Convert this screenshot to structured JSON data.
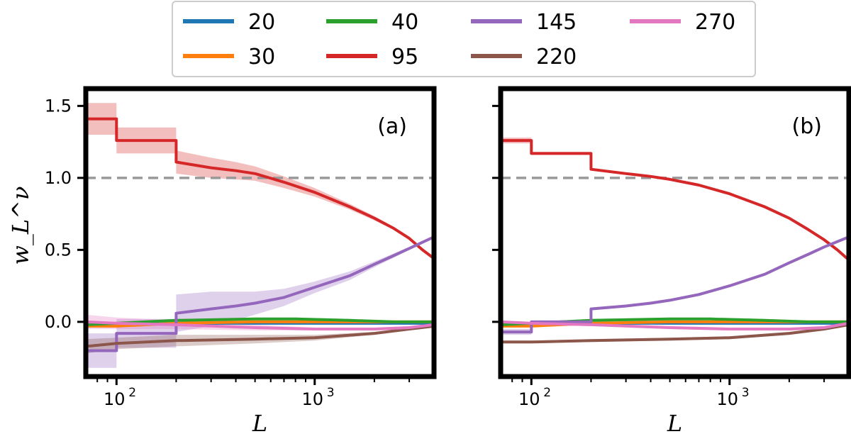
{
  "chart_data": [
    {
      "type": "line",
      "panel_label": "(a)",
      "xlabel": "L",
      "ylabel": "w_L^ν",
      "xscale": "log",
      "xlim": [
        70,
        4000
      ],
      "ylim": [
        -0.38,
        1.62
      ],
      "x_ticks": [
        100,
        1000
      ],
      "x_tick_labels": [
        "10",
        "10"
      ],
      "x_tick_exponents": [
        "2",
        "3"
      ],
      "y_ticks": [
        -0.0,
        0.5,
        1.0,
        1.5
      ],
      "y_tick_labels": [
        "0.0",
        "0.5",
        "1.0",
        "1.5"
      ],
      "reference_line": {
        "y": 1.0,
        "style": "dashed",
        "color": "#999999"
      },
      "series": [
        {
          "name": "20",
          "color": "#1f77b4",
          "points": [
            [
              70,
              -0.02
            ],
            [
              100,
              -0.02
            ],
            [
              300,
              -0.01
            ],
            [
              1000,
              -0.01
            ],
            [
              4000,
              -0.01
            ]
          ],
          "band": [
            0.005,
            0.005,
            0.005,
            0.005,
            0.005
          ]
        },
        {
          "name": "30",
          "color": "#ff7f0e",
          "points": [
            [
              70,
              -0.03
            ],
            [
              100,
              -0.03
            ],
            [
              200,
              -0.01
            ],
            [
              500,
              0.0
            ],
            [
              1000,
              0.0
            ],
            [
              2000,
              0.0
            ],
            [
              4000,
              0.0
            ]
          ],
          "band": [
            0.01,
            0.01,
            0.01,
            0.01,
            0.01,
            0.01,
            0.01
          ]
        },
        {
          "name": "40",
          "color": "#2ca02c",
          "points": [
            [
              70,
              -0.02
            ],
            [
              100,
              -0.01
            ],
            [
              200,
              0.01
            ],
            [
              500,
              0.02
            ],
            [
              800,
              0.02
            ],
            [
              1500,
              0.01
            ],
            [
              2500,
              0.0
            ],
            [
              4000,
              0.0
            ]
          ],
          "band": [
            0.02,
            0.01,
            0.01,
            0.01,
            0.01,
            0.01,
            0.01,
            0.01
          ]
        },
        {
          "name": "95",
          "color": "#d62728",
          "points": [
            [
              70,
              1.41
            ],
            [
              100,
              1.41
            ],
            [
              100,
              1.26
            ],
            [
              200,
              1.26
            ],
            [
              200,
              1.11
            ],
            [
              300,
              1.07
            ],
            [
              400,
              1.05
            ],
            [
              500,
              1.03
            ],
            [
              700,
              0.97
            ],
            [
              1000,
              0.9
            ],
            [
              1500,
              0.8
            ],
            [
              2000,
              0.72
            ],
            [
              2500,
              0.65
            ],
            [
              3000,
              0.58
            ],
            [
              3500,
              0.5
            ],
            [
              4000,
              0.44
            ]
          ],
          "band": [
            0.11,
            0.11,
            0.09,
            0.09,
            0.08,
            0.07,
            0.06,
            0.05,
            0.04,
            0.03,
            0.02,
            0.015,
            0.01,
            0.01,
            0.01,
            0.01
          ]
        },
        {
          "name": "145",
          "color": "#9467bd",
          "points": [
            [
              70,
              -0.2
            ],
            [
              100,
              -0.2
            ],
            [
              100,
              -0.08
            ],
            [
              200,
              -0.08
            ],
            [
              200,
              0.06
            ],
            [
              300,
              0.09
            ],
            [
              400,
              0.11
            ],
            [
              500,
              0.13
            ],
            [
              700,
              0.17
            ],
            [
              1000,
              0.24
            ],
            [
              1500,
              0.32
            ],
            [
              2000,
              0.4
            ],
            [
              2500,
              0.46
            ],
            [
              3000,
              0.51
            ],
            [
              4000,
              0.59
            ]
          ],
          "band": [
            0.12,
            0.12,
            0.1,
            0.1,
            0.13,
            0.12,
            0.1,
            0.08,
            0.06,
            0.04,
            0.03,
            0.02,
            0.015,
            0.01,
            0.01
          ]
        },
        {
          "name": "220",
          "color": "#8c564b",
          "points": [
            [
              70,
              -0.17
            ],
            [
              100,
              -0.15
            ],
            [
              200,
              -0.13
            ],
            [
              500,
              -0.12
            ],
            [
              1000,
              -0.11
            ],
            [
              2000,
              -0.08
            ],
            [
              3000,
              -0.05
            ],
            [
              4000,
              -0.03
            ]
          ],
          "band": [
            0.05,
            0.04,
            0.04,
            0.03,
            0.02,
            0.01,
            0.01,
            0.01
          ]
        },
        {
          "name": "270",
          "color": "#e377c2",
          "points": [
            [
              70,
              0.0
            ],
            [
              100,
              -0.01
            ],
            [
              200,
              -0.02
            ],
            [
              500,
              -0.04
            ],
            [
              1000,
              -0.05
            ],
            [
              2000,
              -0.05
            ],
            [
              3000,
              -0.04
            ],
            [
              4000,
              -0.02
            ]
          ],
          "band": [
            0.05,
            0.04,
            0.03,
            0.02,
            0.01,
            0.01,
            0.01,
            0.01
          ]
        }
      ]
    },
    {
      "type": "line",
      "panel_label": "(b)",
      "xlabel": "L",
      "ylabel": "",
      "xscale": "log",
      "xlim": [
        70,
        4000
      ],
      "ylim": [
        -0.38,
        1.62
      ],
      "x_ticks": [
        100,
        1000
      ],
      "x_tick_labels": [
        "10",
        "10"
      ],
      "x_tick_exponents": [
        "2",
        "3"
      ],
      "y_ticks": [
        -0.0,
        0.5,
        1.0,
        1.5
      ],
      "y_tick_labels": [],
      "reference_line": {
        "y": 1.0,
        "style": "dashed",
        "color": "#999999"
      },
      "series": [
        {
          "name": "20",
          "color": "#1f77b4",
          "points": [
            [
              70,
              -0.02
            ],
            [
              200,
              -0.01
            ],
            [
              1000,
              -0.01
            ],
            [
              4000,
              -0.01
            ]
          ],
          "band": [
            0.003,
            0.003,
            0.003,
            0.003
          ]
        },
        {
          "name": "30",
          "color": "#ff7f0e",
          "points": [
            [
              70,
              -0.03
            ],
            [
              100,
              -0.03
            ],
            [
              200,
              -0.01
            ],
            [
              500,
              0.0
            ],
            [
              1000,
              0.0
            ],
            [
              2000,
              0.0
            ],
            [
              4000,
              0.0
            ]
          ],
          "band": [
            0.005,
            0.005,
            0.005,
            0.005,
            0.005,
            0.005,
            0.005
          ]
        },
        {
          "name": "40",
          "color": "#2ca02c",
          "points": [
            [
              70,
              -0.02
            ],
            [
              100,
              -0.01
            ],
            [
              200,
              0.01
            ],
            [
              500,
              0.02
            ],
            [
              800,
              0.02
            ],
            [
              1500,
              0.01
            ],
            [
              2500,
              0.0
            ],
            [
              4000,
              0.0
            ]
          ],
          "band": [
            0.01,
            0.01,
            0.01,
            0.01,
            0.01,
            0.01,
            0.01,
            0.01
          ]
        },
        {
          "name": "95",
          "color": "#d62728",
          "points": [
            [
              70,
              1.26
            ],
            [
              100,
              1.26
            ],
            [
              100,
              1.17
            ],
            [
              200,
              1.17
            ],
            [
              200,
              1.06
            ],
            [
              300,
              1.03
            ],
            [
              400,
              1.01
            ],
            [
              500,
              0.99
            ],
            [
              700,
              0.95
            ],
            [
              1000,
              0.89
            ],
            [
              1500,
              0.8
            ],
            [
              2000,
              0.72
            ],
            [
              2500,
              0.64
            ],
            [
              3000,
              0.57
            ],
            [
              3500,
              0.5
            ],
            [
              4000,
              0.43
            ]
          ],
          "band": [
            0.02,
            0.02,
            0.01,
            0.01,
            0.01,
            0.01,
            0.01,
            0.01,
            0.01,
            0.01,
            0.01,
            0.01,
            0.01,
            0.01,
            0.01,
            0.01
          ]
        },
        {
          "name": "145",
          "color": "#9467bd",
          "points": [
            [
              70,
              -0.07
            ],
            [
              100,
              -0.07
            ],
            [
              100,
              0.0
            ],
            [
              200,
              0.0
            ],
            [
              200,
              0.09
            ],
            [
              300,
              0.11
            ],
            [
              400,
              0.13
            ],
            [
              500,
              0.15
            ],
            [
              700,
              0.19
            ],
            [
              1000,
              0.25
            ],
            [
              1500,
              0.33
            ],
            [
              2000,
              0.41
            ],
            [
              2500,
              0.47
            ],
            [
              3000,
              0.52
            ],
            [
              4000,
              0.59
            ]
          ],
          "band": [
            0.02,
            0.02,
            0.01,
            0.01,
            0.01,
            0.01,
            0.01,
            0.01,
            0.01,
            0.01,
            0.01,
            0.01,
            0.01,
            0.01,
            0.01
          ]
        },
        {
          "name": "220",
          "color": "#8c564b",
          "points": [
            [
              70,
              -0.14
            ],
            [
              100,
              -0.14
            ],
            [
              200,
              -0.13
            ],
            [
              500,
              -0.12
            ],
            [
              1000,
              -0.11
            ],
            [
              2000,
              -0.08
            ],
            [
              3000,
              -0.05
            ],
            [
              4000,
              -0.02
            ]
          ],
          "band": [
            0.01,
            0.01,
            0.01,
            0.01,
            0.01,
            0.01,
            0.01,
            0.01
          ]
        },
        {
          "name": "270",
          "color": "#e377c2",
          "points": [
            [
              70,
              0.0
            ],
            [
              100,
              -0.01
            ],
            [
              200,
              -0.02
            ],
            [
              500,
              -0.04
            ],
            [
              1000,
              -0.05
            ],
            [
              2000,
              -0.05
            ],
            [
              3000,
              -0.04
            ],
            [
              4000,
              -0.01
            ]
          ],
          "band": [
            0.01,
            0.01,
            0.01,
            0.01,
            0.01,
            0.01,
            0.01,
            0.01
          ]
        }
      ]
    }
  ],
  "legend": {
    "placement": "top-center",
    "columns": 4,
    "entries": [
      {
        "label": "20",
        "color": "#1f77b4"
      },
      {
        "label": "30",
        "color": "#ff7f0e"
      },
      {
        "label": "40",
        "color": "#2ca02c"
      },
      {
        "label": "95",
        "color": "#d62728"
      },
      {
        "label": "145",
        "color": "#9467bd"
      },
      {
        "label": "220",
        "color": "#8c564b"
      },
      {
        "label": "270",
        "color": "#e377c2"
      }
    ]
  }
}
